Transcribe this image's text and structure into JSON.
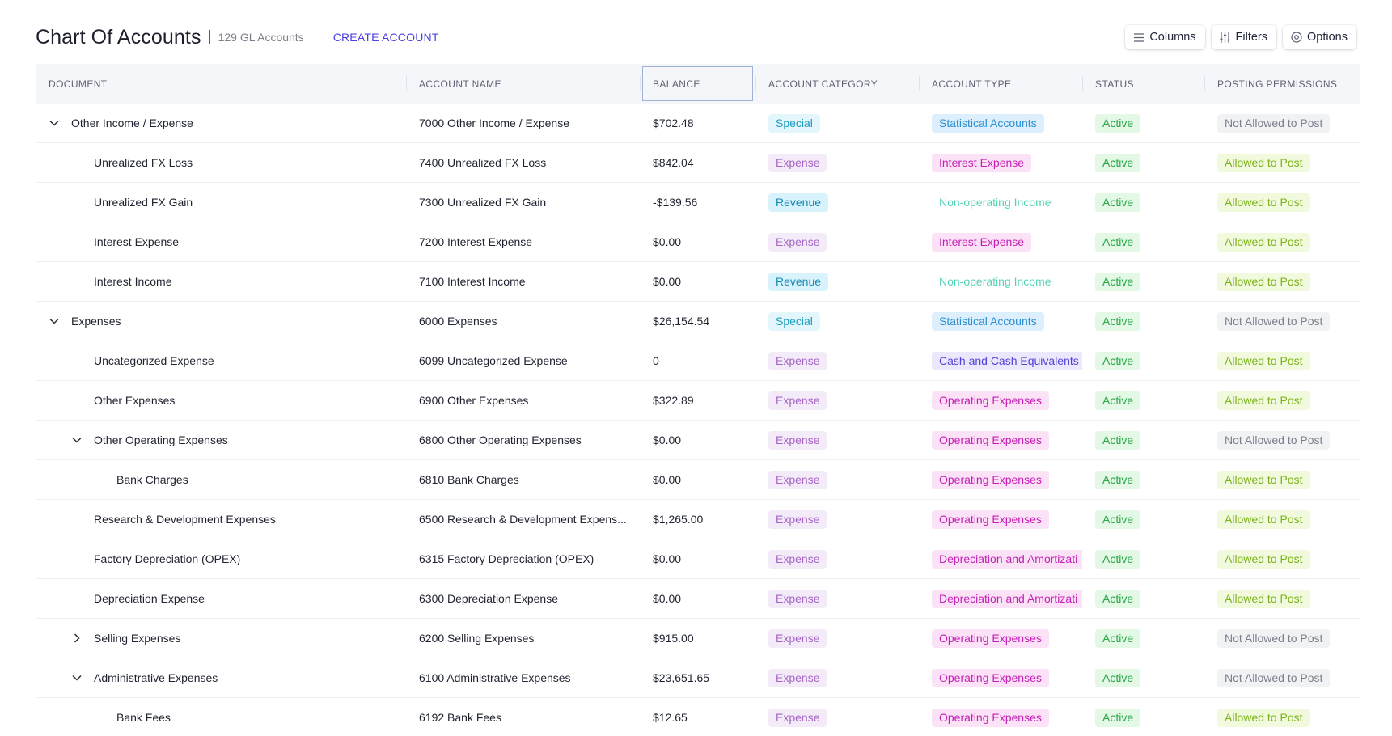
{
  "header": {
    "title": "Chart Of Accounts",
    "subtitle": "129 GL Accounts",
    "create_label": "CREATE ACCOUNT",
    "columns_label": "Columns",
    "filters_label": "Filters",
    "options_label": "Options"
  },
  "table": {
    "columns": [
      "DOCUMENT",
      "ACCOUNT NAME",
      "BALANCE",
      "ACCOUNT CATEGORY",
      "ACCOUNT TYPE",
      "STATUS",
      "POSTING PERMISSIONS"
    ],
    "rows": [
      {
        "document": "Other Income / Expense",
        "account_name": "7000 Other Income / Expense",
        "balance": "$702.48",
        "category": "Special",
        "type": "Statistical Accounts",
        "status": "Active",
        "permission": "Not Allowed to Post",
        "level": 0,
        "toggle": "expanded"
      },
      {
        "document": "Unrealized FX Loss",
        "account_name": "7400 Unrealized FX Loss",
        "balance": "$842.04",
        "category": "Expense",
        "type": "Interest Expense",
        "status": "Active",
        "permission": "Allowed to Post",
        "level": 1,
        "toggle": "none"
      },
      {
        "document": "Unrealized FX Gain",
        "account_name": "7300 Unrealized FX Gain",
        "balance": "-$139.56",
        "category": "Revenue",
        "type": "Non-operating Income",
        "status": "Active",
        "permission": "Allowed to Post",
        "level": 1,
        "toggle": "none"
      },
      {
        "document": "Interest Expense",
        "account_name": "7200 Interest Expense",
        "balance": "$0.00",
        "category": "Expense",
        "type": "Interest Expense",
        "status": "Active",
        "permission": "Allowed to Post",
        "level": 1,
        "toggle": "none"
      },
      {
        "document": "Interest Income",
        "account_name": "7100 Interest Income",
        "balance": "$0.00",
        "category": "Revenue",
        "type": "Non-operating Income",
        "status": "Active",
        "permission": "Allowed to Post",
        "level": 1,
        "toggle": "none"
      },
      {
        "document": "Expenses",
        "account_name": "6000 Expenses",
        "balance": "$26,154.54",
        "category": "Special",
        "type": "Statistical Accounts",
        "status": "Active",
        "permission": "Not Allowed to Post",
        "level": 0,
        "toggle": "expanded"
      },
      {
        "document": "Uncategorized Expense",
        "account_name": "6099 Uncategorized Expense",
        "balance": "0",
        "category": "Expense",
        "type": "Cash and Cash Equivalents",
        "status": "Active",
        "permission": "Allowed to Post",
        "level": 1,
        "toggle": "none"
      },
      {
        "document": "Other Expenses",
        "account_name": "6900 Other Expenses",
        "balance": "$322.89",
        "category": "Expense",
        "type": "Operating Expenses",
        "status": "Active",
        "permission": "Allowed to Post",
        "level": 1,
        "toggle": "none"
      },
      {
        "document": "Other Operating Expenses",
        "account_name": "6800 Other Operating Expenses",
        "balance": "$0.00",
        "category": "Expense",
        "type": "Operating Expenses",
        "status": "Active",
        "permission": "Not Allowed to Post",
        "level": 1,
        "toggle": "expanded"
      },
      {
        "document": "Bank Charges",
        "account_name": "6810 Bank Charges",
        "balance": "$0.00",
        "category": "Expense",
        "type": "Operating Expenses",
        "status": "Active",
        "permission": "Allowed to Post",
        "level": 2,
        "toggle": "none"
      },
      {
        "document": "Research & Development Expenses",
        "account_name": "6500 Research & Development Expens...",
        "balance": "$1,265.00",
        "category": "Expense",
        "type": "Operating Expenses",
        "status": "Active",
        "permission": "Allowed to Post",
        "level": 1,
        "toggle": "none"
      },
      {
        "document": "Factory Depreciation (OPEX)",
        "account_name": "6315 Factory Depreciation (OPEX)",
        "balance": "$0.00",
        "category": "Expense",
        "type": "Depreciation and Amortizati",
        "status": "Active",
        "permission": "Allowed to Post",
        "level": 1,
        "toggle": "none"
      },
      {
        "document": "Depreciation Expense",
        "account_name": "6300 Depreciation Expense",
        "balance": "$0.00",
        "category": "Expense",
        "type": "Depreciation and Amortizati",
        "status": "Active",
        "permission": "Allowed to Post",
        "level": 1,
        "toggle": "none"
      },
      {
        "document": "Selling Expenses",
        "account_name": "6200 Selling Expenses",
        "balance": "$915.00",
        "category": "Expense",
        "type": "Operating Expenses",
        "status": "Active",
        "permission": "Not Allowed to Post",
        "level": 1,
        "toggle": "collapsed"
      },
      {
        "document": "Administrative Expenses",
        "account_name": "6100 Administrative Expenses",
        "balance": "$23,651.65",
        "category": "Expense",
        "type": "Operating Expenses",
        "status": "Active",
        "permission": "Not Allowed to Post",
        "level": 1,
        "toggle": "expanded"
      },
      {
        "document": "Bank Fees",
        "account_name": "6192 Bank Fees",
        "balance": "$12.65",
        "category": "Expense",
        "type": "Operating Expenses",
        "status": "Active",
        "permission": "Allowed to Post",
        "level": 2,
        "toggle": "none"
      }
    ]
  },
  "colors": {
    "accent": "#4b43e0",
    "tag_special": {
      "bg": "#e3f6fb",
      "fg": "#1a9cc0"
    },
    "tag_expense": {
      "bg": "#f3ebf8",
      "fg": "#a665c6"
    },
    "tag_revenue": {
      "bg": "#d9f3fc",
      "fg": "#1688b4"
    },
    "type_statistical": {
      "bg": "#ddeefc",
      "fg": "#2a8fd0"
    },
    "type_interest": {
      "bg": "#fbe2f7",
      "fg": "#c41fb6"
    },
    "type_nonoperating": {
      "bg": "#ffffff",
      "fg": "#55d3b8"
    },
    "type_cash": {
      "bg": "#ebe8fd",
      "fg": "#5143d8"
    },
    "type_operating": {
      "bg": "#fbe2f7",
      "fg": "#c41fb6"
    },
    "type_depreciation": {
      "bg": "#fbe2f7",
      "fg": "#c41fb6"
    },
    "status_active": {
      "bg": "#e4f8e6",
      "fg": "#2aa84a"
    },
    "perm_allowed": {
      "bg": "#f1fadc",
      "fg": "#7bb21c"
    },
    "perm_not_allowed": {
      "bg": "#f1f2f4",
      "fg": "#7b7f8c"
    }
  }
}
